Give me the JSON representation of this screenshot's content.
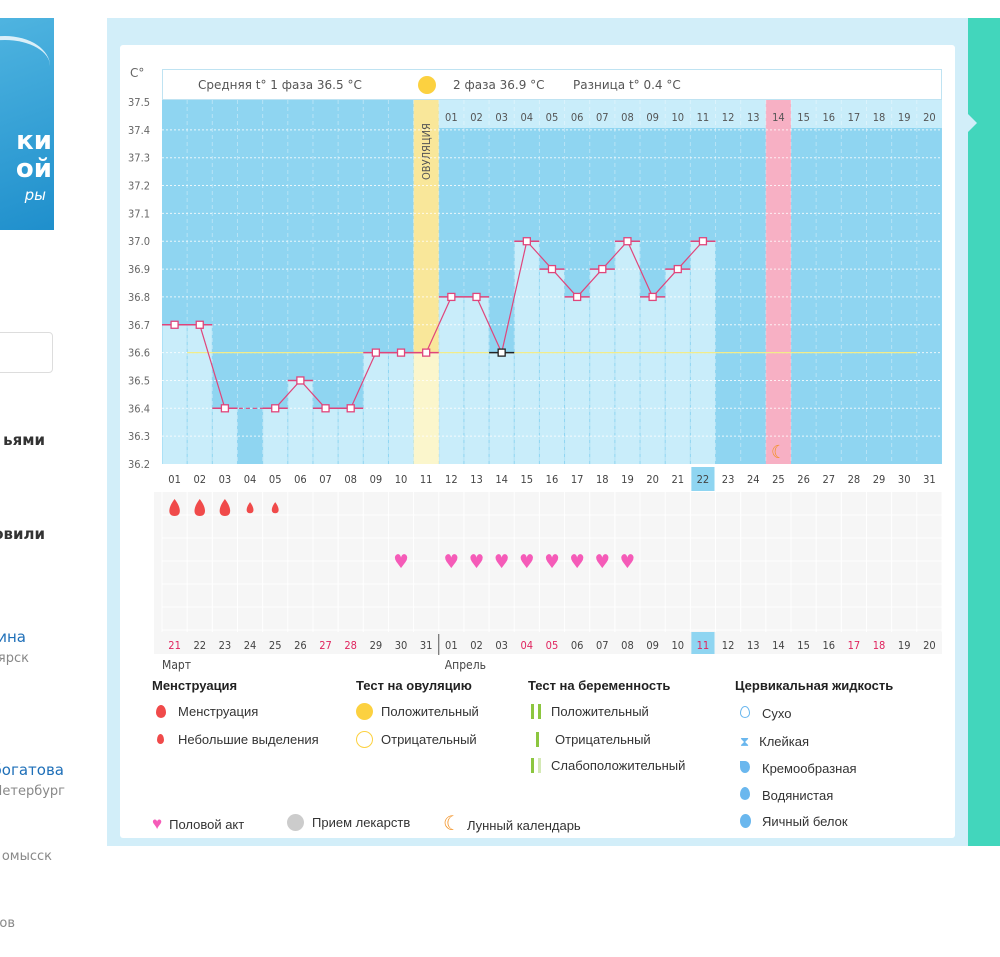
{
  "sidebar": {
    "logo_lines": [
      "ки",
      "ой",
      "ры"
    ],
    "items": [
      {
        "text": "ьями",
        "style": "bold"
      },
      {
        "text": "овили",
        "style": "bold"
      },
      {
        "text": "ина",
        "style": "link"
      },
      {
        "text": "ярск",
        "style": "gray"
      },
      {
        "text": "богатова",
        "style": "link"
      },
      {
        "text": "Іетербург",
        "style": "gray"
      },
      {
        "text": "омысск",
        "style": "gray"
      },
      {
        "text": "ов",
        "style": "gray"
      }
    ]
  },
  "header": {
    "phase1": "Средняя t° 1 фаза 36.5 °C",
    "phase2": "2 фаза 36.9 °C",
    "diff": "Разница t° 0.4 °C"
  },
  "chart_data": {
    "type": "bar+line",
    "ylabel": "C°",
    "ylim": [
      36.2,
      37.5
    ],
    "yticks": [
      "37.5",
      "37.4",
      "37.3",
      "37.2",
      "37.1",
      "37.0",
      "36.9",
      "36.8",
      "36.7",
      "36.6",
      "36.5",
      "36.4",
      "36.3",
      "36.2"
    ],
    "grid": true,
    "cycle_days": [
      "01",
      "02",
      "03",
      "04",
      "05",
      "06",
      "07",
      "08",
      "09",
      "10",
      "11",
      "12",
      "13",
      "14",
      "15",
      "16",
      "17",
      "18",
      "19",
      "20",
      "21",
      "22",
      "23",
      "24",
      "25",
      "26",
      "27",
      "28",
      "29",
      "30",
      "31"
    ],
    "temperatures": [
      36.7,
      36.7,
      36.4,
      null,
      36.4,
      36.5,
      36.4,
      36.4,
      36.6,
      36.6,
      36.6,
      36.8,
      36.8,
      36.6,
      37.0,
      36.9,
      36.8,
      36.9,
      37.0,
      36.8,
      36.9,
      37.0,
      null,
      null,
      null,
      null,
      null,
      null,
      null,
      null,
      null
    ],
    "coverline": 36.6,
    "ovulation_day": 11,
    "ovulation_label": "ОВУЛЯЦИЯ",
    "highlight_day": 25,
    "current_day": 22,
    "today_marker_day": 14,
    "post_ovulation_labels": [
      "01",
      "02",
      "03",
      "04",
      "05",
      "06",
      "07",
      "08",
      "09",
      "10",
      "11",
      "12",
      "13",
      "14",
      "15",
      "16",
      "17",
      "18",
      "19",
      "20"
    ],
    "dates": [
      "21",
      "22",
      "23",
      "24",
      "25",
      "26",
      "27",
      "28",
      "29",
      "30",
      "31",
      "01",
      "02",
      "03",
      "04",
      "05",
      "06",
      "07",
      "08",
      "09",
      "10",
      "11",
      "12",
      "13",
      "14",
      "15",
      "16",
      "17",
      "18",
      "19",
      "20"
    ],
    "weekend_dates_index": [
      0,
      6,
      7,
      14,
      15,
      21,
      27,
      28
    ],
    "today_date_index": 21,
    "months": [
      "Март",
      "Апрель"
    ],
    "menstruation": [
      2,
      2,
      2,
      1,
      1,
      0,
      0,
      0,
      0,
      0,
      0,
      0,
      0,
      0,
      0,
      0,
      0,
      0,
      0,
      0,
      0,
      0,
      0,
      0,
      0,
      0,
      0,
      0,
      0,
      0,
      0
    ],
    "intercourse_days": [
      10,
      12,
      13,
      14,
      15,
      16,
      17,
      18,
      19
    ],
    "moon_day": 25,
    "colors": {
      "plot": "#8fd5f1",
      "bar": "#c9edfa",
      "line": "#e0457b",
      "ovulation": "#f9e79a",
      "highlight": "#f7b0c4",
      "coverline": "#f2ec8a",
      "weekend": "#e0245e"
    }
  },
  "legend": {
    "menstruation": {
      "title": "Менструация",
      "items": [
        "Менструация",
        "Небольшие выделения"
      ]
    },
    "ovulation_test": {
      "title": "Тест на овуляцию",
      "items": [
        "Положительный",
        "Отрицательный"
      ]
    },
    "pregnancy_test": {
      "title": "Тест на беременность",
      "items": [
        "Положительный",
        "Отрицательный",
        "Слабоположительный"
      ]
    },
    "cervical": {
      "title": "Цервикальная жидкость",
      "items": [
        "Сухо",
        "Клейкая",
        "Кремообразная",
        "Водянистая",
        "Яичный белок"
      ]
    },
    "other": [
      "Половой акт",
      "Прием лекарств",
      "Лунный календарь"
    ]
  }
}
